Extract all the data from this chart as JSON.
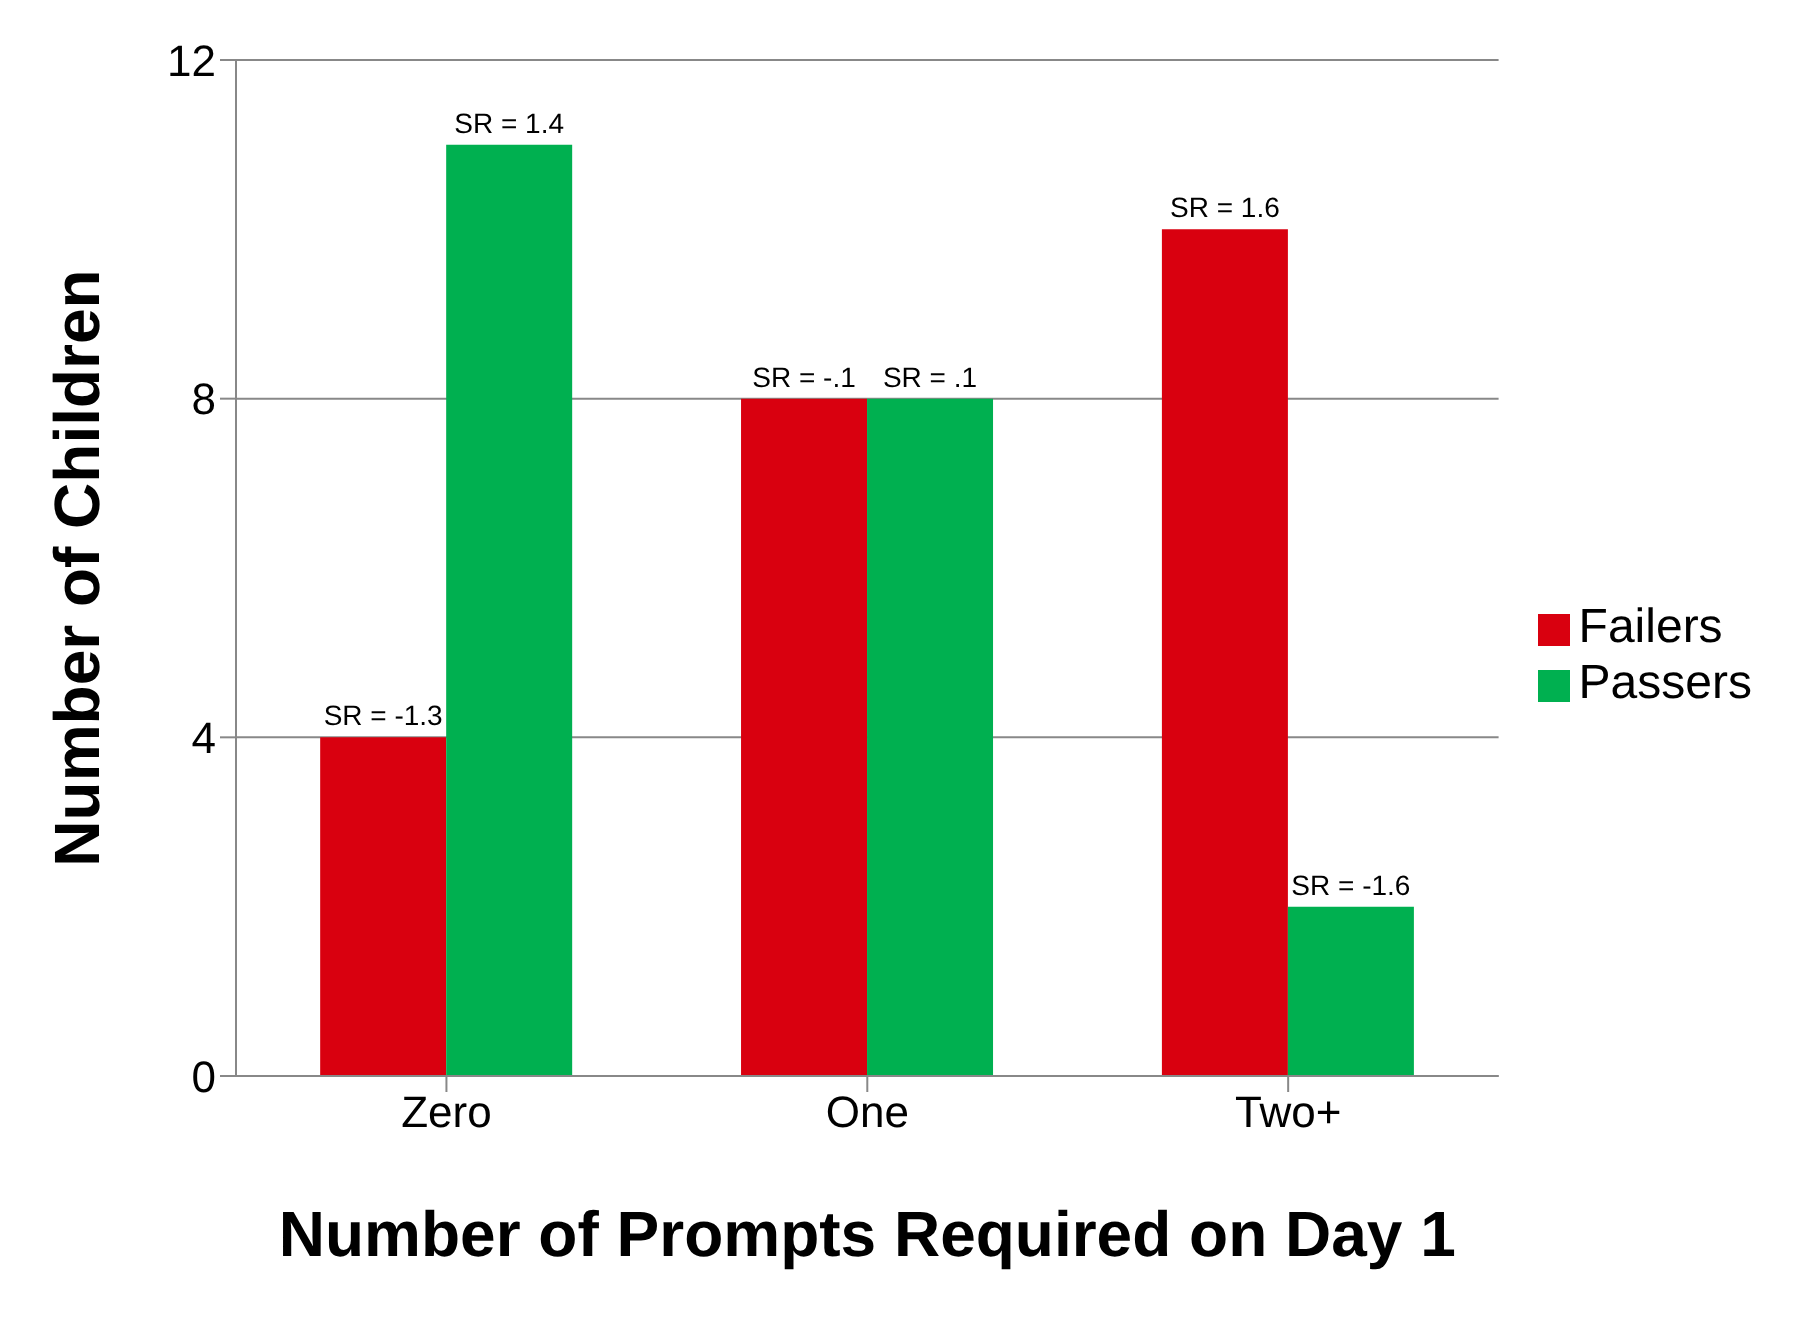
{
  "chart_data": {
    "type": "bar",
    "xlabel": "Number of Prompts Required on Day 1",
    "ylabel": "Number of Children",
    "categories": [
      "Zero",
      "One",
      "Two+"
    ],
    "series": [
      {
        "name": "Failers",
        "color": "#d9000f",
        "values": [
          4,
          8,
          10
        ]
      },
      {
        "name": "Passers",
        "color": "#00b050",
        "values": [
          11,
          8,
          2
        ]
      }
    ],
    "annotations": [
      {
        "text": "SR = -1.3",
        "x": "Zero",
        "y": 4
      },
      {
        "text": "SR = 1.4",
        "x": "Zero",
        "y": 11
      },
      {
        "text": "SR = -.1",
        "x": "One",
        "y": 8
      },
      {
        "text": "SR = .1",
        "x": "One",
        "y": 8
      },
      {
        "text": "SR = 1.6",
        "x": "Two+",
        "y": 10
      },
      {
        "text": "SR = -1.6",
        "x": "Two+",
        "y": 2
      }
    ],
    "ylim": [
      0,
      12
    ],
    "yticks": [
      0,
      4,
      8,
      12
    ],
    "grid": "y",
    "legend": "right"
  }
}
